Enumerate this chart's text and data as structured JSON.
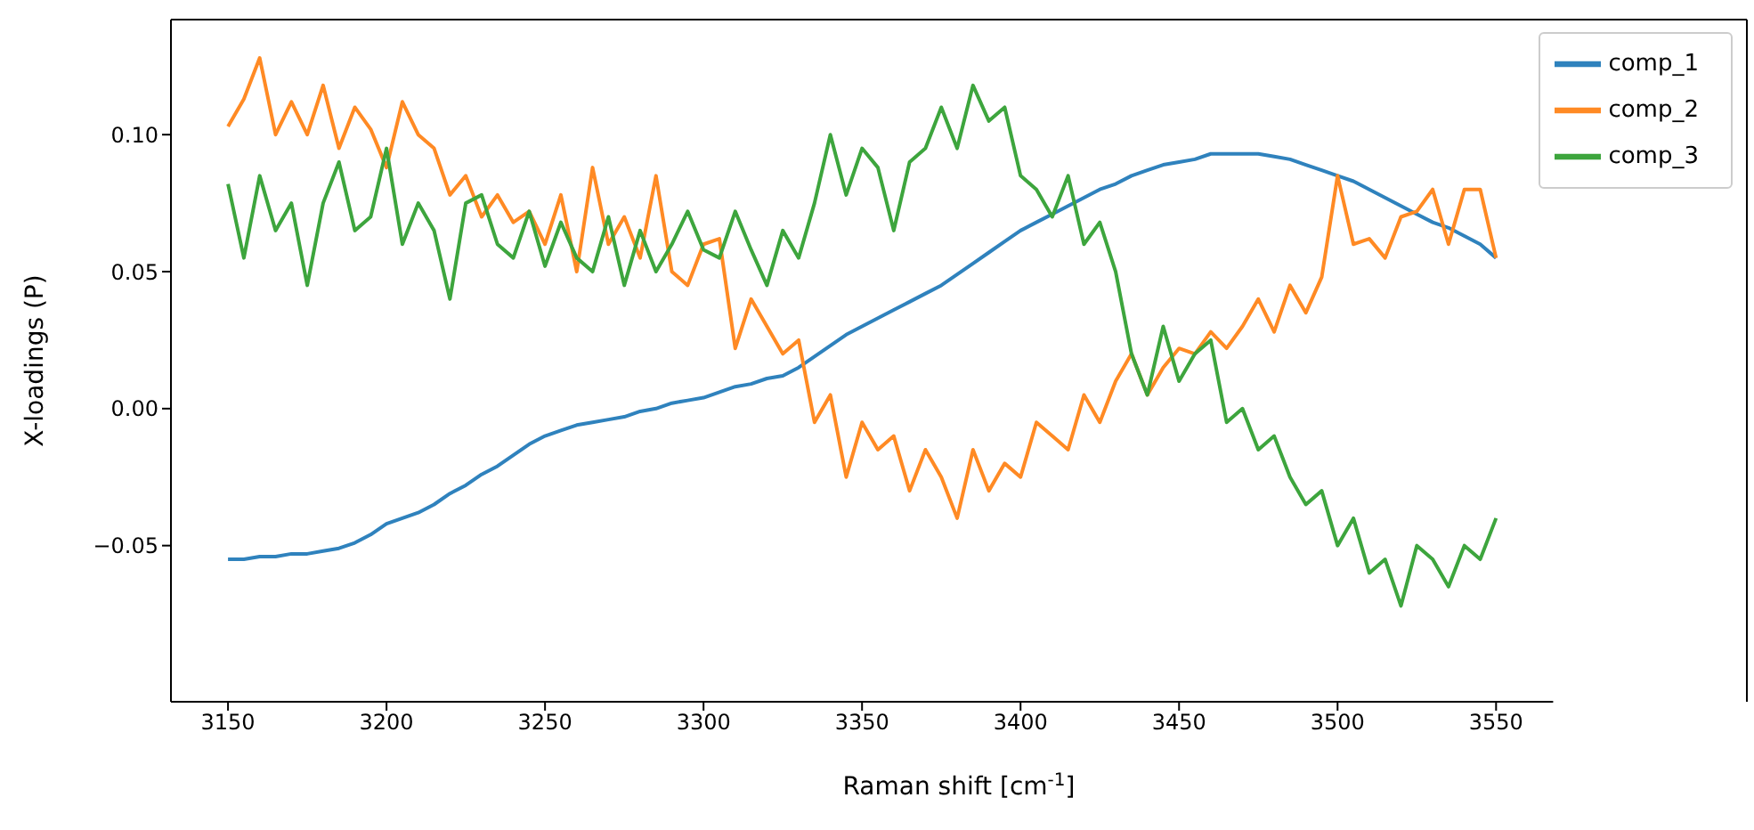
{
  "chart_data": {
    "type": "line",
    "xlabel": "Raman shift [cm$^{-1}$]",
    "ylabel": "X-loadings (P)",
    "x": [
      3150,
      3155,
      3160,
      3165,
      3170,
      3175,
      3180,
      3185,
      3190,
      3195,
      3200,
      3205,
      3210,
      3215,
      3220,
      3225,
      3230,
      3235,
      3240,
      3245,
      3250,
      3255,
      3260,
      3265,
      3270,
      3275,
      3280,
      3285,
      3290,
      3295,
      3300,
      3305,
      3310,
      3315,
      3320,
      3325,
      3330,
      3335,
      3340,
      3345,
      3350,
      3355,
      3360,
      3365,
      3370,
      3375,
      3380,
      3385,
      3390,
      3395,
      3400,
      3405,
      3410,
      3415,
      3420,
      3425,
      3430,
      3435,
      3440,
      3445,
      3450,
      3455,
      3460,
      3465,
      3470,
      3475,
      3480,
      3485,
      3490,
      3495,
      3500,
      3505,
      3510,
      3515,
      3520,
      3525,
      3530,
      3535,
      3540,
      3545,
      3550
    ],
    "series": [
      {
        "name": "comp_1",
        "color": "#2f82bd",
        "values": [
          -0.055,
          -0.055,
          -0.054,
          -0.054,
          -0.053,
          -0.053,
          -0.052,
          -0.051,
          -0.049,
          -0.046,
          -0.042,
          -0.04,
          -0.038,
          -0.035,
          -0.031,
          -0.028,
          -0.024,
          -0.021,
          -0.017,
          -0.013,
          -0.01,
          -0.008,
          -0.006,
          -0.005,
          -0.004,
          -0.003,
          -0.001,
          0.0,
          0.002,
          0.003,
          0.004,
          0.006,
          0.008,
          0.009,
          0.011,
          0.012,
          0.015,
          0.019,
          0.023,
          0.027,
          0.03,
          0.033,
          0.036,
          0.039,
          0.042,
          0.045,
          0.049,
          0.053,
          0.057,
          0.061,
          0.065,
          0.068,
          0.071,
          0.074,
          0.077,
          0.08,
          0.082,
          0.085,
          0.087,
          0.089,
          0.09,
          0.091,
          0.093,
          0.093,
          0.093,
          0.093,
          0.092,
          0.091,
          0.089,
          0.087,
          0.085,
          0.083,
          0.08,
          0.077,
          0.074,
          0.071,
          0.068,
          0.066,
          0.063,
          0.06,
          0.055
        ]
      },
      {
        "name": "comp_2",
        "color": "#ff8a24",
        "values": [
          0.103,
          0.113,
          0.128,
          0.1,
          0.112,
          0.1,
          0.118,
          0.095,
          0.11,
          0.102,
          0.088,
          0.112,
          0.1,
          0.095,
          0.078,
          0.085,
          0.07,
          0.078,
          0.068,
          0.072,
          0.06,
          0.078,
          0.05,
          0.088,
          0.06,
          0.07,
          0.055,
          0.085,
          0.05,
          0.045,
          0.06,
          0.062,
          0.022,
          0.04,
          0.03,
          0.02,
          0.025,
          -0.005,
          0.005,
          -0.025,
          -0.005,
          -0.015,
          -0.01,
          -0.03,
          -0.015,
          -0.025,
          -0.04,
          -0.015,
          -0.03,
          -0.02,
          -0.025,
          -0.005,
          -0.01,
          -0.015,
          0.005,
          -0.005,
          0.01,
          0.02,
          0.005,
          0.015,
          0.022,
          0.02,
          0.028,
          0.022,
          0.03,
          0.04,
          0.028,
          0.045,
          0.035,
          0.048,
          0.085,
          0.06,
          0.062,
          0.055,
          0.07,
          0.072,
          0.08,
          0.06,
          0.08,
          0.08,
          0.055
        ]
      },
      {
        "name": "comp_3",
        "color": "#3da53d",
        "values": [
          0.082,
          0.055,
          0.085,
          0.065,
          0.075,
          0.045,
          0.075,
          0.09,
          0.065,
          0.07,
          0.095,
          0.06,
          0.075,
          0.065,
          0.04,
          0.075,
          0.078,
          0.06,
          0.055,
          0.072,
          0.052,
          0.068,
          0.055,
          0.05,
          0.07,
          0.045,
          0.065,
          0.05,
          0.06,
          0.072,
          0.058,
          0.055,
          0.072,
          0.058,
          0.045,
          0.065,
          0.055,
          0.075,
          0.1,
          0.078,
          0.095,
          0.088,
          0.065,
          0.09,
          0.095,
          0.11,
          0.095,
          0.118,
          0.105,
          0.11,
          0.085,
          0.08,
          0.07,
          0.085,
          0.06,
          0.068,
          0.05,
          0.02,
          0.005,
          0.03,
          0.01,
          0.02,
          0.025,
          -0.005,
          0.0,
          -0.015,
          -0.01,
          -0.025,
          -0.035,
          -0.03,
          -0.05,
          -0.04,
          -0.06,
          -0.055,
          -0.072,
          -0.05,
          -0.055,
          -0.065,
          -0.05,
          -0.055,
          -0.04
        ]
      }
    ],
    "xlim": [
      3132,
      3568
    ],
    "xticks": [
      3150,
      3200,
      3250,
      3300,
      3350,
      3400,
      3450,
      3500,
      3550
    ],
    "ylim": [
      -0.107,
      0.142
    ],
    "yticks": [
      {
        "value": -0.05,
        "label": "−0.05"
      },
      {
        "value": 0,
        "label": "0.00"
      },
      {
        "value": 0.05,
        "label": "0.05"
      },
      {
        "value": 0.1,
        "label": "0.10"
      }
    ],
    "grid": false,
    "legend": "top right",
    "marker": "none",
    "line_style": "solid"
  }
}
